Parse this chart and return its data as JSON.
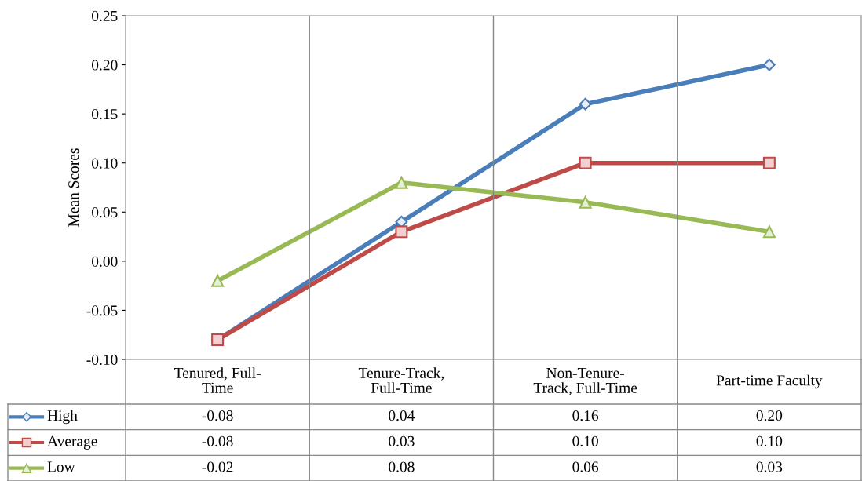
{
  "chart_data": {
    "type": "line",
    "ylabel": "Mean Scores",
    "categories": [
      "Tenured, Full-\nTime",
      "Tenure-Track,\nFull-Time",
      "Non-Tenure-\nTrack, Full-Time",
      "Part-time Faculty"
    ],
    "series": [
      {
        "name": "High",
        "color": "#4a7ebb",
        "marker": "diamond",
        "values": [
          -0.08,
          0.04,
          0.16,
          0.2
        ],
        "value_labels": [
          "-0.08",
          "0.04",
          "0.16",
          "0.20"
        ]
      },
      {
        "name": "Average",
        "color": "#be4b48",
        "marker": "square",
        "values": [
          -0.08,
          0.03,
          0.1,
          0.1
        ],
        "value_labels": [
          "-0.08",
          "0.03",
          "0.10",
          "0.10"
        ]
      },
      {
        "name": "Low",
        "color": "#98b954",
        "marker": "triangle",
        "values": [
          -0.02,
          0.08,
          0.06,
          0.03
        ],
        "value_labels": [
          "-0.02",
          "0.08",
          "0.06",
          "0.03"
        ]
      }
    ],
    "ylim": [
      -0.1,
      0.25
    ],
    "yticks": [
      {
        "value": -0.1,
        "label": "-0.10"
      },
      {
        "value": -0.05,
        "label": "-0.05"
      },
      {
        "value": 0,
        "label": "0.00"
      },
      {
        "value": 0.05,
        "label": "0.05"
      },
      {
        "value": 0.1,
        "label": "0.10"
      },
      {
        "value": 0.15,
        "label": "0.15"
      },
      {
        "value": 0.2,
        "label": "0.20"
      },
      {
        "value": 0.25,
        "label": "0.25"
      }
    ],
    "grid": false,
    "legend": "bottom left",
    "line_style": "solid"
  }
}
